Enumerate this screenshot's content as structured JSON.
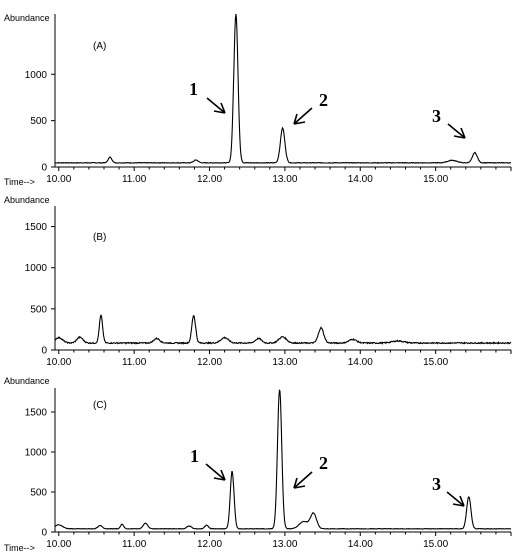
{
  "chart_data": [
    {
      "type": "line",
      "panel_label": "(A)",
      "ylabel": "Abundance",
      "xlabel": "Time-->",
      "yticks": [
        0,
        500,
        1000
      ],
      "xticks": [
        "10.00",
        "11.00",
        "12.00",
        "13.00",
        "14.00",
        "15.00"
      ],
      "xlim": [
        9.95,
        16.0
      ],
      "ylim": [
        0,
        1650
      ],
      "baseline": 45,
      "peaks": [
        {
          "x": 10.68,
          "y": 105,
          "w": 0.025
        },
        {
          "x": 11.82,
          "y": 75,
          "w": 0.03
        },
        {
          "x": 12.35,
          "y": 1650,
          "w": 0.028
        },
        {
          "x": 12.97,
          "y": 420,
          "w": 0.03
        },
        {
          "x": 15.22,
          "y": 72,
          "w": 0.06
        },
        {
          "x": 15.52,
          "y": 155,
          "w": 0.032
        }
      ],
      "annotations": [
        {
          "label": "1",
          "x": 12.35
        },
        {
          "label": "2",
          "x": 12.97
        },
        {
          "label": "3",
          "x": 15.52
        }
      ]
    },
    {
      "type": "line",
      "panel_label": "(B)",
      "ylabel": "Abundance",
      "xlabel": "",
      "yticks": [
        0,
        500,
        1000,
        1500
      ],
      "xticks": [
        "10.00",
        "11.00",
        "12.00",
        "13.00",
        "14.00",
        "15.00"
      ],
      "xlim": [
        9.95,
        16.0
      ],
      "ylim": [
        0,
        1750
      ],
      "baseline": 85,
      "peaks": [
        {
          "x": 10.0,
          "y": 150,
          "w": 0.05
        },
        {
          "x": 10.28,
          "y": 155,
          "w": 0.04
        },
        {
          "x": 10.56,
          "y": 420,
          "w": 0.022
        },
        {
          "x": 11.3,
          "y": 140,
          "w": 0.04
        },
        {
          "x": 11.79,
          "y": 420,
          "w": 0.025
        },
        {
          "x": 12.2,
          "y": 150,
          "w": 0.05
        },
        {
          "x": 12.65,
          "y": 140,
          "w": 0.04
        },
        {
          "x": 12.97,
          "y": 160,
          "w": 0.05
        },
        {
          "x": 13.48,
          "y": 270,
          "w": 0.035
        },
        {
          "x": 13.9,
          "y": 130,
          "w": 0.05
        },
        {
          "x": 14.5,
          "y": 110,
          "w": 0.08
        }
      ],
      "annotations": []
    },
    {
      "type": "line",
      "panel_label": "(C)",
      "ylabel": "Abundance",
      "xlabel": "Time-->",
      "yticks": [
        0,
        500,
        1000,
        1500
      ],
      "xticks": [
        "10.00",
        "11.00",
        "12.00",
        "13.00",
        "14.00",
        "15.00"
      ],
      "xlim": [
        9.95,
        16.0
      ],
      "ylim": [
        0,
        1800
      ],
      "baseline": 40,
      "peaks": [
        {
          "x": 10.0,
          "y": 90,
          "w": 0.05
        },
        {
          "x": 10.55,
          "y": 80,
          "w": 0.03
        },
        {
          "x": 10.84,
          "y": 100,
          "w": 0.02
        },
        {
          "x": 11.15,
          "y": 110,
          "w": 0.03
        },
        {
          "x": 11.73,
          "y": 75,
          "w": 0.03
        },
        {
          "x": 11.96,
          "y": 85,
          "w": 0.025
        },
        {
          "x": 12.3,
          "y": 760,
          "w": 0.025
        },
        {
          "x": 12.93,
          "y": 1780,
          "w": 0.028
        },
        {
          "x": 13.25,
          "y": 130,
          "w": 0.06
        },
        {
          "x": 13.38,
          "y": 230,
          "w": 0.04
        },
        {
          "x": 15.44,
          "y": 440,
          "w": 0.028
        }
      ],
      "annotations": [
        {
          "label": "1",
          "x": 12.3
        },
        {
          "label": "2",
          "x": 12.93
        },
        {
          "label": "3",
          "x": 15.44
        }
      ]
    }
  ]
}
